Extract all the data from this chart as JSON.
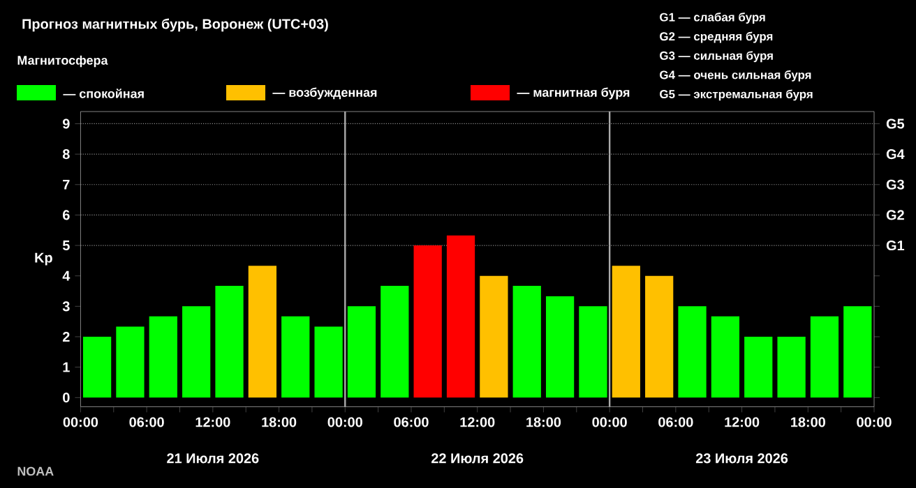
{
  "chart_data": {
    "type": "bar",
    "title": "Прогноз магнитных бурь, Воронеж (UTC+03)",
    "legend_title": "Магнитосфера",
    "ylabel": "Kp",
    "x": [
      "2026-07-21T01:30",
      "2026-07-21T04:30",
      "2026-07-21T07:30",
      "2026-07-21T10:30",
      "2026-07-21T13:30",
      "2026-07-21T16:30",
      "2026-07-21T19:30",
      "2026-07-21T22:30",
      "2026-07-22T01:30",
      "2026-07-22T04:30",
      "2026-07-22T07:30",
      "2026-07-22T10:30",
      "2026-07-22T13:30",
      "2026-07-22T16:30",
      "2026-07-22T19:30",
      "2026-07-22T22:30",
      "2026-07-23T01:30",
      "2026-07-23T04:30",
      "2026-07-23T07:30",
      "2026-07-23T10:30",
      "2026-07-23T13:30",
      "2026-07-23T16:30",
      "2026-07-23T19:30",
      "2026-07-23T22:30"
    ],
    "series": [
      {
        "name": "— спокойная",
        "color": "#00ff00",
        "values": [
          2,
          2.33,
          2.67,
          3,
          3.67,
          null,
          2.67,
          2.33,
          3,
          3.67,
          null,
          null,
          null,
          3.67,
          3.33,
          3,
          null,
          null,
          3,
          2.67,
          2,
          2,
          2.67,
          3
        ]
      },
      {
        "name": "— возбужденная",
        "color": "#ffc000",
        "values": [
          null,
          null,
          null,
          null,
          null,
          4.33,
          null,
          null,
          null,
          null,
          null,
          null,
          4,
          null,
          null,
          null,
          4.33,
          4,
          null,
          null,
          null,
          null,
          null,
          null
        ]
      },
      {
        "name": "— магнитная буря",
        "color": "#ff0000",
        "values": [
          null,
          null,
          null,
          null,
          null,
          null,
          null,
          null,
          null,
          null,
          5,
          5.33,
          null,
          null,
          null,
          null,
          null,
          null,
          null,
          null,
          null,
          null,
          null,
          null
        ]
      }
    ],
    "xlim": [
      "2026-07-21T00:00",
      "2026-07-24T00:00"
    ],
    "xticks": [
      {
        "value": "2026-07-21T00:00",
        "label": "00:00"
      },
      {
        "value": "2026-07-21T03:00",
        "label": null
      },
      {
        "value": "2026-07-21T06:00",
        "label": "06:00"
      },
      {
        "value": "2026-07-21T09:00",
        "label": null
      },
      {
        "value": "2026-07-21T12:00",
        "label": "12:00"
      },
      {
        "value": "2026-07-21T15:00",
        "label": null
      },
      {
        "value": "2026-07-21T18:00",
        "label": "18:00"
      },
      {
        "value": "2026-07-21T21:00",
        "label": null
      },
      {
        "value": "2026-07-22T00:00",
        "label": "00:00"
      },
      {
        "value": "2026-07-22T03:00",
        "label": null
      },
      {
        "value": "2026-07-22T06:00",
        "label": "06:00"
      },
      {
        "value": "2026-07-22T09:00",
        "label": null
      },
      {
        "value": "2026-07-22T12:00",
        "label": "12:00"
      },
      {
        "value": "2026-07-22T15:00",
        "label": null
      },
      {
        "value": "2026-07-22T18:00",
        "label": "18:00"
      },
      {
        "value": "2026-07-22T21:00",
        "label": null
      },
      {
        "value": "2026-07-23T00:00",
        "label": "00:00"
      },
      {
        "value": "2026-07-23T03:00",
        "label": null
      },
      {
        "value": "2026-07-23T06:00",
        "label": "06:00"
      },
      {
        "value": "2026-07-23T09:00",
        "label": null
      },
      {
        "value": "2026-07-23T12:00",
        "label": "12:00"
      },
      {
        "value": "2026-07-23T15:00",
        "label": null
      },
      {
        "value": "2026-07-23T18:00",
        "label": "18:00"
      },
      {
        "value": "2026-07-23T21:00",
        "label": null
      },
      {
        "value": "2026-07-24T00:00",
        "label": "00:00"
      }
    ],
    "ylim": [
      -0.3,
      9.4
    ],
    "yticks": [
      0,
      1,
      2,
      3,
      4,
      5,
      6,
      7,
      8,
      9
    ],
    "ref_lines": [
      {
        "axis": "x",
        "value": "2026-07-22T00:00",
        "color": "#aaaaaa"
      },
      {
        "axis": "x",
        "value": "2026-07-23T00:00",
        "color": "#aaaaaa"
      },
      {
        "axis": "y",
        "value": 5,
        "label": "G1",
        "color": "#8c8c8c",
        "line_style": "dotted"
      },
      {
        "axis": "y",
        "value": 6,
        "label": "G2",
        "color": "#8c8c8c",
        "line_style": "dotted"
      },
      {
        "axis": "y",
        "value": 7,
        "label": "G3",
        "color": "#8c8c8c",
        "line_style": "dotted"
      },
      {
        "axis": "y",
        "value": 8,
        "label": "G4",
        "color": "#8c8c8c",
        "line_style": "dotted"
      },
      {
        "axis": "y",
        "value": 9,
        "label": "G5",
        "color": "#8c8c8c",
        "line_style": "dotted"
      }
    ],
    "legend": "top left",
    "annotations": [
      "G1 — слабая буря",
      "G2 — средняя буря",
      "G3 — сильная буря",
      "G4 — очень сильная буря",
      "G5 — экстремальная буря",
      "21 Июля 2026",
      "22 Июля 2026",
      "23 Июля 2026",
      "NOAA"
    ]
  }
}
